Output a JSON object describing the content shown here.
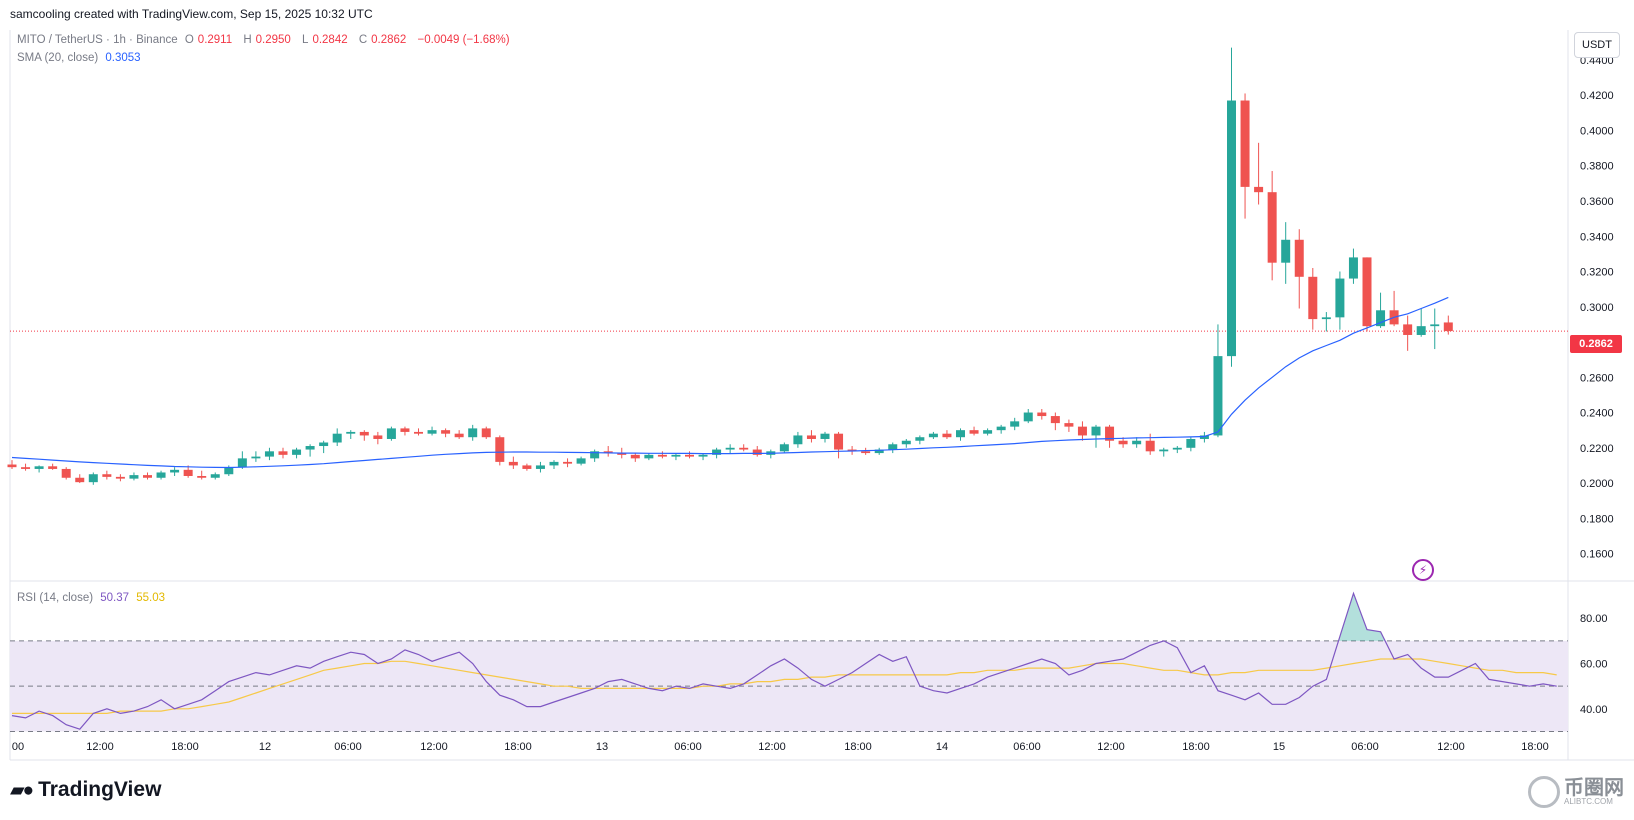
{
  "header": {
    "created_by": "samcooling created with TradingView.com, Sep 15, 2025 10:32 UTC"
  },
  "legend": {
    "symbol": "MITO / TetherUS · 1h · Binance",
    "o_label": "O",
    "o_value": "0.2911",
    "h_label": "H",
    "h_value": "0.2950",
    "l_label": "L",
    "l_value": "0.2842",
    "c_label": "C",
    "c_value": "0.2862",
    "change": "−0.0049 (−1.68%)",
    "sma_label": "SMA (20, close)",
    "sma_value": "0.3053",
    "rsi_label": "RSI (14, close)",
    "rsi_value": "50.37",
    "rsi_ma_value": "55.03"
  },
  "price_scale": {
    "unit_button": "USDT",
    "current_price_label": "0.2862"
  },
  "brand": {
    "name": "TradingView"
  },
  "watermark": {
    "name": "币圈网",
    "url": "ALIBTC.COM"
  },
  "colors": {
    "up": "#26a69a",
    "down": "#ef5350",
    "sma": "#2962ff",
    "rsi": "#7e57c2",
    "rsi_ma": "#f7c948",
    "rsi_band": "#ede7f6"
  },
  "icons": {
    "alert": "lightning-bolt-icon",
    "brand_logo": "tradingview-logo-icon"
  },
  "chart_data": [
    {
      "type": "candlestick",
      "interval": "1h",
      "y_ticks": [
        "0.1600",
        "0.1800",
        "0.2000",
        "0.2200",
        "0.2400",
        "0.2600",
        "0.2800",
        "0.3000",
        "0.3200",
        "0.3400",
        "0.3600",
        "0.3800",
        "0.4000",
        "0.4200",
        "0.4400"
      ],
      "ylim": [
        0.145,
        0.457
      ],
      "x_ticks": [
        "00",
        "12:00",
        "18:00",
        "12",
        "06:00",
        "12:00",
        "18:00",
        "13",
        "06:00",
        "12:00",
        "18:00",
        "14",
        "06:00",
        "12:00",
        "18:00",
        "15",
        "06:00",
        "12:00",
        "18:00"
      ],
      "current_price": 0.2862,
      "candles": [
        [
          0.2105,
          0.213,
          0.208,
          0.209
        ],
        [
          0.209,
          0.211,
          0.207,
          0.208
        ],
        [
          0.208,
          0.21,
          0.206,
          0.2095
        ],
        [
          0.2095,
          0.211,
          0.2075,
          0.208
        ],
        [
          0.208,
          0.209,
          0.202,
          0.203
        ],
        [
          0.203,
          0.205,
          0.2,
          0.2005
        ],
        [
          0.2005,
          0.206,
          0.199,
          0.205
        ],
        [
          0.205,
          0.207,
          0.202,
          0.2035
        ],
        [
          0.2035,
          0.205,
          0.201,
          0.2025
        ],
        [
          0.2025,
          0.206,
          0.2015,
          0.2045
        ],
        [
          0.2045,
          0.206,
          0.202,
          0.203
        ],
        [
          0.203,
          0.207,
          0.202,
          0.206
        ],
        [
          0.206,
          0.209,
          0.204,
          0.2075
        ],
        [
          0.2075,
          0.21,
          0.203,
          0.204
        ],
        [
          0.204,
          0.207,
          0.202,
          0.203
        ],
        [
          0.203,
          0.206,
          0.202,
          0.205
        ],
        [
          0.205,
          0.21,
          0.204,
          0.209
        ],
        [
          0.209,
          0.218,
          0.208,
          0.214
        ],
        [
          0.214,
          0.218,
          0.212,
          0.215
        ],
        [
          0.215,
          0.22,
          0.213,
          0.218
        ],
        [
          0.218,
          0.22,
          0.214,
          0.216
        ],
        [
          0.216,
          0.22,
          0.214,
          0.219
        ],
        [
          0.219,
          0.222,
          0.215,
          0.221
        ],
        [
          0.221,
          0.224,
          0.217,
          0.223
        ],
        [
          0.223,
          0.231,
          0.221,
          0.228
        ],
        [
          0.228,
          0.23,
          0.225,
          0.229
        ],
        [
          0.229,
          0.23,
          0.224,
          0.227
        ],
        [
          0.227,
          0.229,
          0.222,
          0.225
        ],
        [
          0.225,
          0.232,
          0.224,
          0.231
        ],
        [
          0.231,
          0.232,
          0.227,
          0.229
        ],
        [
          0.229,
          0.231,
          0.227,
          0.228
        ],
        [
          0.228,
          0.232,
          0.227,
          0.23
        ],
        [
          0.23,
          0.231,
          0.226,
          0.228
        ],
        [
          0.228,
          0.23,
          0.225,
          0.226
        ],
        [
          0.226,
          0.233,
          0.224,
          0.231
        ],
        [
          0.231,
          0.232,
          0.225,
          0.226
        ],
        [
          0.226,
          0.227,
          0.21,
          0.212
        ],
        [
          0.212,
          0.215,
          0.208,
          0.21
        ],
        [
          0.21,
          0.211,
          0.207,
          0.208
        ],
        [
          0.208,
          0.212,
          0.206,
          0.21
        ],
        [
          0.21,
          0.213,
          0.208,
          0.212
        ],
        [
          0.212,
          0.214,
          0.209,
          0.211
        ],
        [
          0.211,
          0.215,
          0.21,
          0.214
        ],
        [
          0.214,
          0.219,
          0.212,
          0.218
        ],
        [
          0.218,
          0.221,
          0.215,
          0.217
        ],
        [
          0.217,
          0.22,
          0.214,
          0.216
        ],
        [
          0.216,
          0.217,
          0.212,
          0.214
        ],
        [
          0.214,
          0.217,
          0.213,
          0.216
        ],
        [
          0.216,
          0.218,
          0.214,
          0.215
        ],
        [
          0.215,
          0.217,
          0.213,
          0.216
        ],
        [
          0.216,
          0.218,
          0.214,
          0.215
        ],
        [
          0.215,
          0.217,
          0.213,
          0.216
        ],
        [
          0.216,
          0.22,
          0.214,
          0.219
        ],
        [
          0.219,
          0.222,
          0.217,
          0.22
        ],
        [
          0.22,
          0.222,
          0.218,
          0.219
        ],
        [
          0.219,
          0.221,
          0.215,
          0.216
        ],
        [
          0.216,
          0.219,
          0.214,
          0.218
        ],
        [
          0.218,
          0.223,
          0.217,
          0.222
        ],
        [
          0.222,
          0.229,
          0.22,
          0.227
        ],
        [
          0.227,
          0.23,
          0.223,
          0.225
        ],
        [
          0.225,
          0.229,
          0.223,
          0.228
        ],
        [
          0.228,
          0.229,
          0.214,
          0.219
        ],
        [
          0.219,
          0.221,
          0.216,
          0.218
        ],
        [
          0.218,
          0.22,
          0.216,
          0.217
        ],
        [
          0.217,
          0.22,
          0.216,
          0.219
        ],
        [
          0.219,
          0.223,
          0.217,
          0.222
        ],
        [
          0.222,
          0.225,
          0.22,
          0.224
        ],
        [
          0.224,
          0.227,
          0.222,
          0.226
        ],
        [
          0.226,
          0.229,
          0.225,
          0.228
        ],
        [
          0.228,
          0.23,
          0.225,
          0.226
        ],
        [
          0.226,
          0.231,
          0.224,
          0.23
        ],
        [
          0.23,
          0.232,
          0.227,
          0.228
        ],
        [
          0.228,
          0.231,
          0.227,
          0.23
        ],
        [
          0.23,
          0.233,
          0.228,
          0.232
        ],
        [
          0.232,
          0.237,
          0.23,
          0.235
        ],
        [
          0.235,
          0.242,
          0.234,
          0.24
        ],
        [
          0.24,
          0.242,
          0.236,
          0.238
        ],
        [
          0.238,
          0.24,
          0.23,
          0.234
        ],
        [
          0.234,
          0.236,
          0.229,
          0.232
        ],
        [
          0.232,
          0.235,
          0.224,
          0.227
        ],
        [
          0.227,
          0.233,
          0.22,
          0.232
        ],
        [
          0.232,
          0.233,
          0.22,
          0.224
        ],
        [
          0.224,
          0.226,
          0.22,
          0.222
        ],
        [
          0.222,
          0.226,
          0.22,
          0.224
        ],
        [
          0.224,
          0.228,
          0.216,
          0.218
        ],
        [
          0.218,
          0.22,
          0.215,
          0.219
        ],
        [
          0.219,
          0.221,
          0.217,
          0.22
        ],
        [
          0.22,
          0.226,
          0.218,
          0.225
        ],
        [
          0.225,
          0.229,
          0.223,
          0.227
        ],
        [
          0.227,
          0.29,
          0.226,
          0.272
        ],
        [
          0.272,
          0.447,
          0.266,
          0.417
        ],
        [
          0.417,
          0.421,
          0.35,
          0.368
        ],
        [
          0.368,
          0.393,
          0.358,
          0.365
        ],
        [
          0.365,
          0.377,
          0.315,
          0.325
        ],
        [
          0.325,
          0.348,
          0.313,
          0.338
        ],
        [
          0.338,
          0.344,
          0.299,
          0.317
        ],
        [
          0.317,
          0.322,
          0.287,
          0.293
        ],
        [
          0.293,
          0.297,
          0.286,
          0.294
        ],
        [
          0.294,
          0.32,
          0.287,
          0.316
        ],
        [
          0.316,
          0.333,
          0.313,
          0.328
        ],
        [
          0.328,
          0.328,
          0.286,
          0.289
        ],
        [
          0.289,
          0.308,
          0.288,
          0.298
        ],
        [
          0.298,
          0.309,
          0.289,
          0.29
        ],
        [
          0.29,
          0.295,
          0.275,
          0.284
        ],
        [
          0.284,
          0.299,
          0.283,
          0.289
        ],
        [
          0.289,
          0.299,
          0.276,
          0.29
        ],
        [
          0.2911,
          0.295,
          0.2842,
          0.2862
        ]
      ],
      "sma": [
        0.2145,
        0.214,
        0.2135,
        0.213,
        0.2125,
        0.212,
        0.2116,
        0.2112,
        0.2108,
        0.2104,
        0.21,
        0.2097,
        0.2094,
        0.2092,
        0.209,
        0.2089,
        0.2088,
        0.209,
        0.2092,
        0.2095,
        0.2098,
        0.2101,
        0.2105,
        0.211,
        0.2116,
        0.2122,
        0.2128,
        0.2134,
        0.214,
        0.2146,
        0.2152,
        0.2158,
        0.2163,
        0.2167,
        0.2171,
        0.2174,
        0.2175,
        0.2176,
        0.2176,
        0.2175,
        0.2175,
        0.2174,
        0.2173,
        0.2172,
        0.2171,
        0.217,
        0.217,
        0.2169,
        0.2169,
        0.2168,
        0.2168,
        0.2167,
        0.2167,
        0.2167,
        0.2168,
        0.2168,
        0.2169,
        0.2171,
        0.2173,
        0.2176,
        0.2178,
        0.218,
        0.2182,
        0.2184,
        0.2186,
        0.2189,
        0.2192,
        0.2196,
        0.22,
        0.2203,
        0.2207,
        0.2211,
        0.2215,
        0.2219,
        0.2224,
        0.223,
        0.2236,
        0.224,
        0.2244,
        0.2247,
        0.225,
        0.2252,
        0.2254,
        0.2256,
        0.2257,
        0.2259,
        0.226,
        0.2262,
        0.2264,
        0.229,
        0.239,
        0.247,
        0.254,
        0.26,
        0.266,
        0.271,
        0.275,
        0.278,
        0.281,
        0.285,
        0.288,
        0.291,
        0.294,
        0.296,
        0.299,
        0.302,
        0.3053
      ],
      "series": [
        {
          "name": "SMA (20, close)"
        }
      ]
    },
    {
      "type": "line",
      "title": "RSI (14, close)",
      "y_ticks": [
        "40.00",
        "60.00",
        "80.00"
      ],
      "ylim": [
        28,
        96
      ],
      "bands": [
        30,
        50,
        70
      ],
      "rsi": [
        37,
        36,
        39,
        37,
        33,
        31,
        38,
        40,
        38,
        39,
        41,
        44,
        40,
        42,
        44,
        48,
        52,
        54,
        56,
        55,
        57,
        59,
        58,
        61,
        63,
        65,
        64,
        60,
        62,
        66,
        64,
        61,
        63,
        65,
        60,
        52,
        46,
        44,
        41,
        41,
        43,
        45,
        47,
        49,
        52,
        53,
        51,
        49,
        48,
        50,
        49,
        51,
        50,
        49,
        51,
        55,
        59,
        62,
        58,
        53,
        50,
        53,
        56,
        60,
        64,
        61,
        63,
        50,
        48,
        47,
        49,
        51,
        54,
        56,
        58,
        60,
        62,
        60,
        55,
        57,
        60,
        61,
        62,
        65,
        68,
        70,
        67,
        56,
        59,
        48,
        46,
        44,
        47,
        42,
        42,
        45,
        50,
        53,
        72,
        91,
        75,
        74,
        62,
        64,
        58,
        54,
        54,
        57,
        60,
        53,
        52,
        51,
        50,
        51,
        50
      ],
      "rsi_ma": [
        38,
        38,
        38,
        38,
        38,
        38,
        38,
        38,
        39,
        39,
        39,
        39,
        40,
        40,
        41,
        42,
        43,
        45,
        47,
        49,
        51,
        53,
        55,
        57,
        58,
        59,
        60,
        60,
        61,
        61,
        60,
        59,
        58,
        57,
        56,
        55,
        54,
        53,
        52,
        51,
        50,
        50,
        49,
        49,
        49,
        49,
        49,
        49,
        49,
        49,
        49,
        50,
        50,
        51,
        51,
        52,
        52,
        53,
        53,
        54,
        54,
        55,
        55,
        55,
        55,
        55,
        55,
        55,
        55,
        55,
        56,
        56,
        57,
        57,
        57,
        58,
        58,
        58,
        58,
        59,
        60,
        60,
        60,
        59,
        58,
        57,
        57,
        56,
        55,
        55,
        56,
        56,
        57,
        57,
        57,
        57,
        57,
        58,
        59,
        60,
        61,
        62,
        62,
        62,
        62,
        61,
        60,
        59,
        58,
        57,
        57,
        56,
        56,
        56,
        55
      ]
    }
  ]
}
